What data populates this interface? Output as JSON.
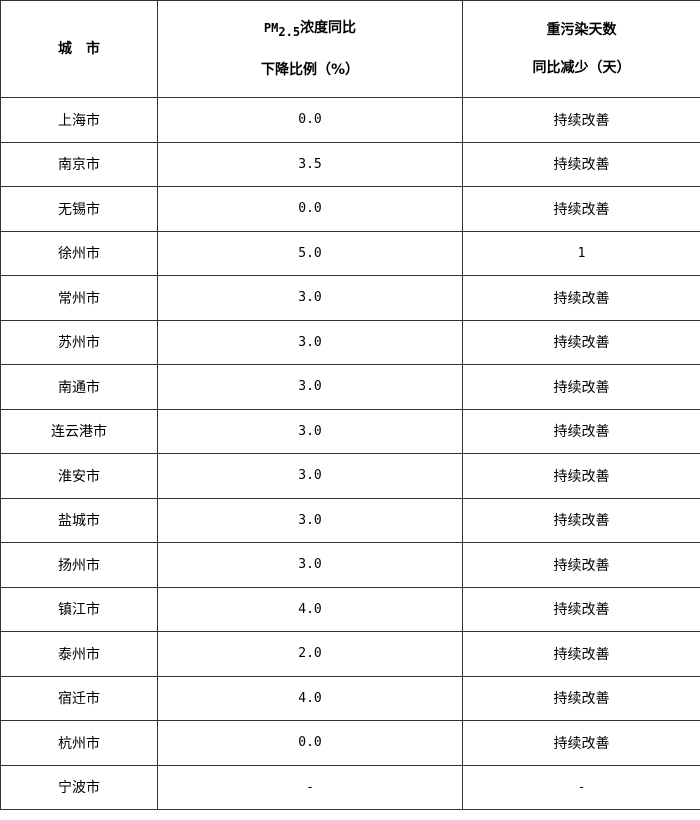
{
  "headers": {
    "city": "城　市",
    "pm_prefix": "PM",
    "pm_sub": "2.5",
    "pm_line1": "浓度同比",
    "pm_line2": "下降比例（%）",
    "days_line1": "重污染天数",
    "days_line2": "同比减少（天）"
  },
  "rows": [
    {
      "city": "上海市",
      "pm": "0.0",
      "days": "持续改善"
    },
    {
      "city": "南京市",
      "pm": "3.5",
      "days": "持续改善"
    },
    {
      "city": "无锡市",
      "pm": "0.0",
      "days": "持续改善"
    },
    {
      "city": "徐州市",
      "pm": "5.0",
      "days": "1"
    },
    {
      "city": "常州市",
      "pm": "3.0",
      "days": "持续改善"
    },
    {
      "city": "苏州市",
      "pm": "3.0",
      "days": "持续改善"
    },
    {
      "city": "南通市",
      "pm": "3.0",
      "days": "持续改善"
    },
    {
      "city": "连云港市",
      "pm": "3.0",
      "days": "持续改善"
    },
    {
      "city": "淮安市",
      "pm": "3.0",
      "days": "持续改善"
    },
    {
      "city": "盐城市",
      "pm": "3.0",
      "days": "持续改善"
    },
    {
      "city": "扬州市",
      "pm": "3.0",
      "days": "持续改善"
    },
    {
      "city": "镇江市",
      "pm": "4.0",
      "days": "持续改善"
    },
    {
      "city": "泰州市",
      "pm": "2.0",
      "days": "持续改善"
    },
    {
      "city": "宿迁市",
      "pm": "4.0",
      "days": "持续改善"
    },
    {
      "city": "杭州市",
      "pm": "0.0",
      "days": "持续改善"
    },
    {
      "city": "宁波市",
      "pm": "-",
      "days": "-"
    }
  ]
}
